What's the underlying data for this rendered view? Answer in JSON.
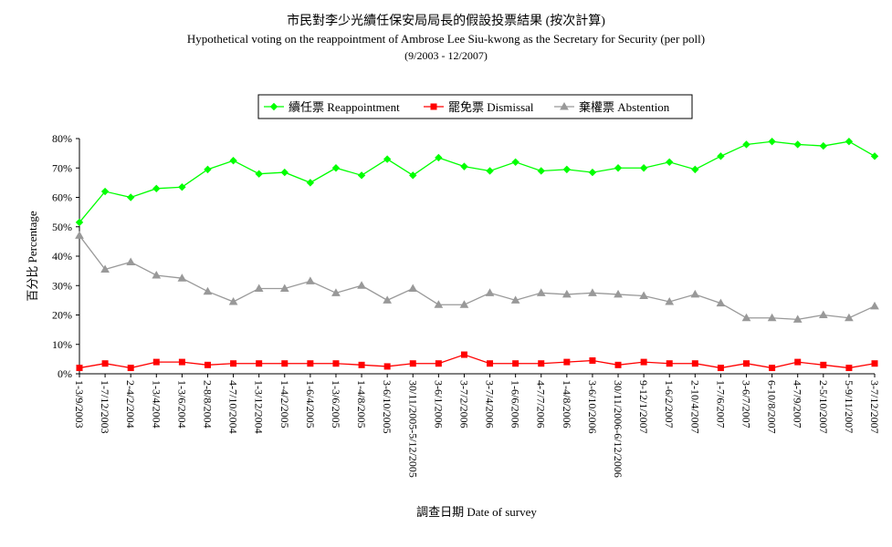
{
  "chart_data": {
    "type": "line",
    "title": "市民對李少光續任保安局局長的假設投票結果 (按次計算)",
    "subtitle": "Hypothetical voting on the reappointment of Ambrose Lee Siu-kwong as the Secretary for Security (per poll)",
    "period": "(9/2003 - 12/2007)",
    "xlabel": "調查日期 Date of survey",
    "ylabel": "百分比 Percentage",
    "ylim": [
      0,
      80
    ],
    "yticks": [
      "0%",
      "10%",
      "20%",
      "30%",
      "40%",
      "50%",
      "60%",
      "70%",
      "80%"
    ],
    "legend_position": "top-center",
    "grid": false,
    "categories": [
      "1-3/9/2003",
      "1-7/12/2003",
      "2-4/2/2004",
      "1-3/4/2004",
      "1-3/6/2004",
      "2-8/8/2004",
      "4-7/10/2004",
      "1-3/12/2004",
      "1-4/2/2005",
      "1-6/4/2005",
      "1-3/6/2005",
      "1-4/8/2005",
      "3-6/10/2005",
      "30/11/2005-5/12/2005",
      "3-6/1/2006",
      "3-7/2/2006",
      "3-7/4/2006",
      "1-6/6/2006",
      "4-7/7/2006",
      "1-4/8/2006",
      "3-6/10/2006",
      "30/11/2006-6/12/2006",
      "9-12/1/2007",
      "1-6/2/2007",
      "2-10/4/2007",
      "1-7/6/2007",
      "3-6/7/2007",
      "6-10/8/2007",
      "4-7/9/2007",
      "2-5/10/2007",
      "5-9/11/2007",
      "3-7/12/2007"
    ],
    "series": [
      {
        "name": "續任票 Reappointment",
        "color": "#00ff00",
        "marker": "diamond",
        "values": [
          51.5,
          62,
          60,
          63,
          63.5,
          69.5,
          72.5,
          68,
          68.5,
          65,
          70,
          67.5,
          73,
          67.5,
          73.5,
          70.5,
          69,
          72,
          69,
          69.5,
          68.5,
          70,
          70,
          72,
          69.5,
          74,
          78,
          79,
          78,
          77.5,
          79,
          74
        ]
      },
      {
        "name": "罷免票 Dismissal",
        "color": "#ff0000",
        "marker": "square",
        "values": [
          2,
          3.5,
          2,
          4,
          4,
          3,
          3.5,
          3.5,
          3.5,
          3.5,
          3.5,
          3,
          2.5,
          3.5,
          3.5,
          6.5,
          3.5,
          3.5,
          3.5,
          4,
          4.5,
          3,
          4,
          3.5,
          3.5,
          2,
          3.5,
          2,
          4,
          3,
          2,
          3.5
        ]
      },
      {
        "name": "棄權票 Abstention",
        "color": "#999999",
        "marker": "triangle",
        "values": [
          47,
          35.5,
          38,
          33.5,
          32.5,
          28,
          24.5,
          29,
          29,
          31.5,
          27.5,
          30,
          25,
          29,
          23.5,
          23.5,
          27.5,
          25,
          27.5,
          27,
          27.5,
          27,
          26.5,
          24.5,
          27,
          24,
          19,
          19,
          18.5,
          20,
          19,
          23
        ]
      }
    ]
  }
}
